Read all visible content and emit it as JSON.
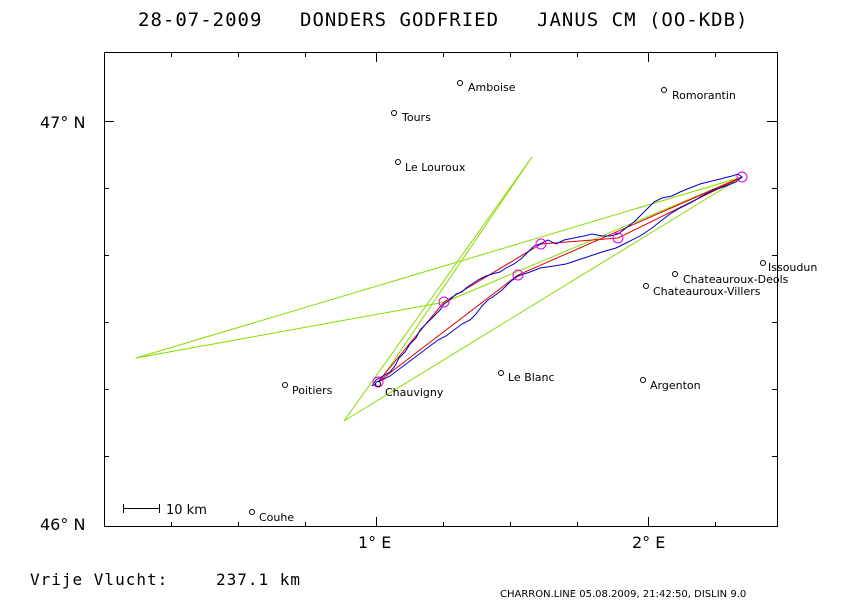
{
  "header": {
    "date": "28-07-2009",
    "pilot": "DONDERS GODFRIED",
    "glider": "JANUS CM (OO-KDB)"
  },
  "axes": {
    "lat_labels": [
      {
        "value": 47,
        "label": "47° N"
      },
      {
        "value": 46,
        "label": "46° N"
      }
    ],
    "lon_labels": [
      {
        "value": 1,
        "label": "1° E"
      },
      {
        "value": 2,
        "label": "2° E"
      }
    ],
    "lon_range": [
      0.0,
      2.5
    ],
    "lat_range": [
      46.0,
      47.17
    ]
  },
  "cities": [
    {
      "name": "Amboise",
      "lon": 1.3,
      "lat": 47.1
    },
    {
      "name": "Romorantin",
      "lon": 2.03,
      "lat": 47.08
    },
    {
      "name": "Tours",
      "lon": 1.06,
      "lat": 47.02
    },
    {
      "name": "Le Louroux",
      "lon": 1.07,
      "lat": 46.9
    },
    {
      "name": "Issoudun",
      "lon": 2.44,
      "lat": 46.65
    },
    {
      "name": "Chateauroux-Deols",
      "lon": 2.08,
      "lat": 46.62
    },
    {
      "name": "Chateauroux-Villers",
      "lon": 2.03,
      "lat": 46.59
    },
    {
      "name": "Le Blanc",
      "lon": 1.48,
      "lat": 46.37
    },
    {
      "name": "Argenton",
      "lon": 1.98,
      "lat": 46.36
    },
    {
      "name": "Poitiers",
      "lon": 0.68,
      "lat": 46.35
    },
    {
      "name": "Chauvigny",
      "lon": 1.02,
      "lat": 46.35
    },
    {
      "name": "Couhe",
      "lon": 0.57,
      "lat": 46.03
    }
  ],
  "scale_bar": {
    "label": "10 km"
  },
  "footer": {
    "label": "Vrije Vlucht:",
    "distance": "237.1 km",
    "source": "CHARRON.LINE 05.08.2009, 21:42:50, DISLIN 9.0"
  },
  "colors": {
    "track": "#0000cc",
    "task": "#e00000",
    "sector": "#88dd00",
    "turnpoint": "#dd00dd"
  }
}
